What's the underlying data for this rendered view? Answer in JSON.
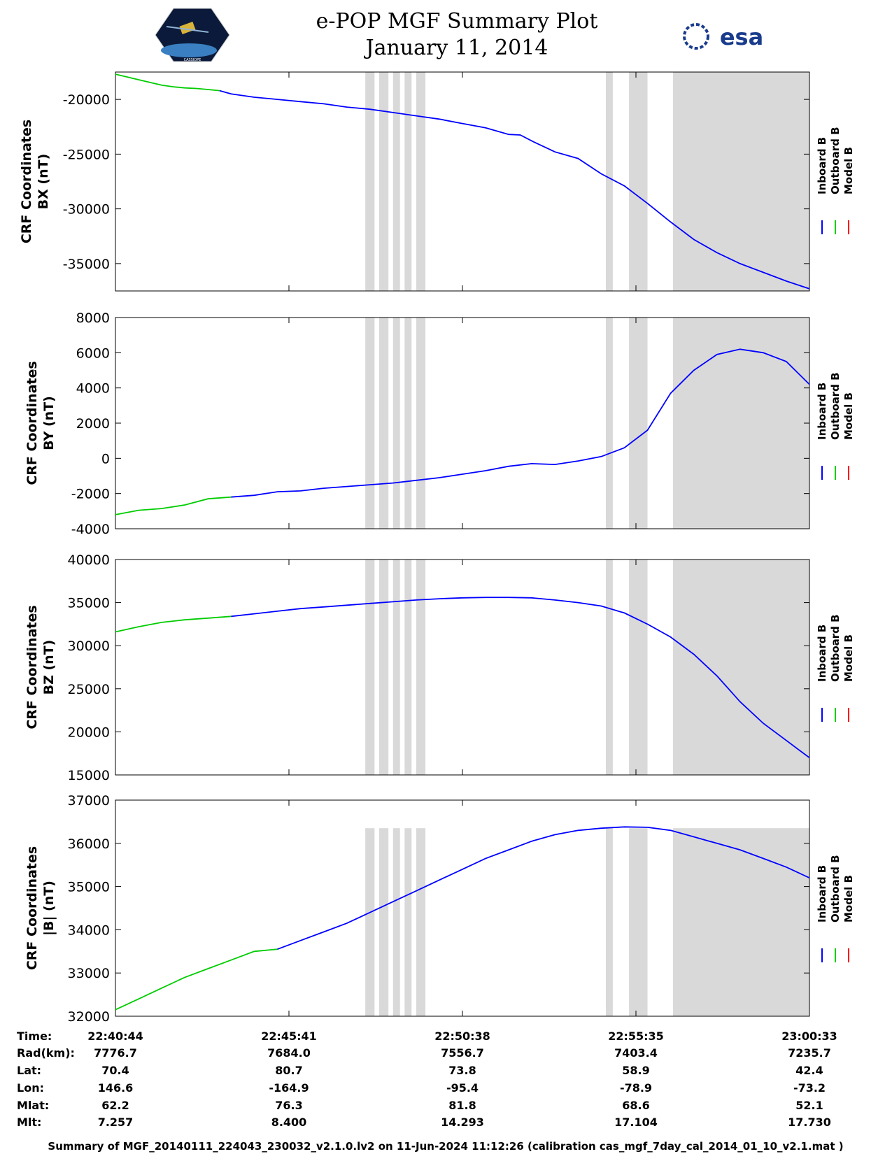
{
  "header": {
    "title": "e-POP MGF Summary Plot",
    "date": "January 11, 2014",
    "esa_logo": "esa",
    "mission_logo_text": "CASSIOPE"
  },
  "legend": {
    "labels": [
      "Inboard B",
      "Outboard B",
      "Model B"
    ],
    "colors": [
      "#0000ff",
      "#00cc00",
      "#ff0000"
    ]
  },
  "footer": "Summary of MGF_20140111_224043_230032_v2.1.0.lv2 on 11-Jun-2024 11:12:26 (calibration cas_mgf_7day_cal_2014_01_10_v2.1.mat )",
  "ephemeris": {
    "row_labels": [
      "Time:",
      "Rad(km):",
      "Lat:",
      "Lon:",
      "Mlat:",
      "Mlt:"
    ],
    "columns": [
      [
        "22:40:44",
        "7776.7",
        "70.4",
        "146.6",
        "62.2",
        "7.257"
      ],
      [
        "22:45:41",
        "7684.0",
        "80.7",
        "-164.9",
        "76.3",
        "8.400"
      ],
      [
        "22:50:38",
        "7556.7",
        "73.8",
        "-95.4",
        "81.8",
        "14.293"
      ],
      [
        "22:55:35",
        "7403.4",
        "58.9",
        "-78.9",
        "68.6",
        "17.104"
      ],
      [
        "23:00:33",
        "7235.7",
        "42.4",
        "-73.2",
        "52.1",
        "17.730"
      ]
    ]
  },
  "chart_data": [
    {
      "type": "line",
      "ylabel": [
        "CRF Coordinates",
        "BX (nT)"
      ],
      "ylim": [
        -37500,
        -17500
      ],
      "yticks": [
        -20000,
        -25000,
        -30000,
        -35000
      ],
      "series": [
        {
          "name": "Outboard B",
          "x": [
            0,
            0.5,
            1,
            1.5,
            2,
            2.5,
            3,
            3.5,
            4,
            4.5
          ],
          "y": [
            -17700,
            -17950,
            -18200,
            -18450,
            -18700,
            -18850,
            -18950,
            -19000,
            -19100,
            -19200
          ]
        },
        {
          "name": "Inboard B",
          "x": [
            4.5,
            5,
            6,
            7,
            8,
            9,
            10,
            11,
            12,
            13,
            14,
            15,
            16,
            17,
            17.5,
            18,
            19,
            20,
            21,
            22,
            23,
            24,
            25,
            26,
            27,
            28,
            29,
            30
          ],
          "y": [
            -19200,
            -19500,
            -19800,
            -20000,
            -20200,
            -20400,
            -20700,
            -20900,
            -21200,
            -21500,
            -21800,
            -22200,
            -22600,
            -23200,
            -23250,
            -23800,
            -24800,
            -25400,
            -26800,
            -27900,
            -29500,
            -31200,
            -32800,
            -34000,
            -35000,
            -35800,
            -36600,
            -37300
          ]
        }
      ],
      "gray_bands": [
        [
          10.8,
          11.2
        ],
        [
          11.4,
          11.8
        ],
        [
          12.0,
          12.3
        ],
        [
          12.5,
          12.8
        ],
        [
          13.0,
          13.4
        ],
        [
          21.2,
          21.5
        ],
        [
          22.2,
          23.0
        ],
        [
          24.1,
          30.0
        ]
      ]
    },
    {
      "type": "line",
      "ylabel": [
        "CRF Coordinates",
        "BY (nT)"
      ],
      "ylim": [
        -4000,
        8000
      ],
      "yticks": [
        8000,
        6000,
        4000,
        2000,
        0,
        -2000,
        -4000
      ],
      "series": [
        {
          "name": "Outboard B",
          "x": [
            0,
            1,
            2,
            3,
            4,
            5
          ],
          "y": [
            -3200,
            -2950,
            -2850,
            -2650,
            -2300,
            -2200
          ]
        },
        {
          "name": "Inboard B",
          "x": [
            5,
            6,
            7,
            8,
            9,
            10,
            11,
            12,
            13,
            14,
            15,
            16,
            17,
            18,
            19,
            20,
            21,
            22,
            23,
            24,
            25,
            26,
            27,
            28,
            29,
            30
          ],
          "y": [
            -2200,
            -2100,
            -1900,
            -1850,
            -1700,
            -1600,
            -1500,
            -1400,
            -1250,
            -1100,
            -900,
            -700,
            -450,
            -300,
            -350,
            -150,
            100,
            600,
            1600,
            3700,
            5000,
            5900,
            6200,
            6000,
            5500,
            4200
          ]
        }
      ],
      "gray_bands": [
        [
          10.8,
          11.2
        ],
        [
          11.4,
          11.8
        ],
        [
          12.0,
          12.3
        ],
        [
          12.5,
          12.8
        ],
        [
          13.0,
          13.4
        ],
        [
          21.2,
          21.5
        ],
        [
          22.2,
          23.0
        ],
        [
          24.1,
          30.0
        ]
      ]
    },
    {
      "type": "line",
      "ylabel": [
        "CRF Coordinates",
        "BZ (nT)"
      ],
      "ylim": [
        15000,
        40000
      ],
      "yticks": [
        40000,
        35000,
        30000,
        25000,
        20000,
        15000
      ],
      "series": [
        {
          "name": "Outboard B",
          "x": [
            0,
            1,
            2,
            3,
            4,
            5
          ],
          "y": [
            31600,
            32200,
            32700,
            33000,
            33200,
            33400
          ]
        },
        {
          "name": "Inboard B",
          "x": [
            5,
            6,
            7,
            8,
            9,
            10,
            11,
            12,
            13,
            14,
            15,
            16,
            17,
            18,
            19,
            20,
            21,
            22,
            23,
            24,
            25,
            26,
            27,
            28,
            29,
            30
          ],
          "y": [
            33400,
            33700,
            34000,
            34300,
            34500,
            34700,
            34900,
            35100,
            35300,
            35450,
            35550,
            35600,
            35600,
            35550,
            35300,
            35000,
            34600,
            33800,
            32500,
            31000,
            29000,
            26500,
            23500,
            21000,
            19000,
            17000
          ]
        }
      ],
      "gray_bands": [
        [
          10.8,
          11.2
        ],
        [
          11.4,
          11.8
        ],
        [
          12.0,
          12.3
        ],
        [
          12.5,
          12.8
        ],
        [
          13.0,
          13.4
        ],
        [
          21.2,
          21.5
        ],
        [
          22.2,
          23.0
        ],
        [
          24.1,
          30.0
        ]
      ]
    },
    {
      "type": "line",
      "ylabel": [
        "CRF Coordinates",
        "|B| (nT)"
      ],
      "ylim": [
        32000,
        37000
      ],
      "yticks": [
        37000,
        36000,
        35000,
        34000,
        33000,
        32000
      ],
      "series": [
        {
          "name": "Outboard B",
          "x": [
            0,
            1,
            2,
            3,
            4,
            5,
            6,
            7
          ],
          "y": [
            32150,
            32400,
            32650,
            32900,
            33100,
            33300,
            33500,
            33550
          ]
        },
        {
          "name": "Inboard B",
          "x": [
            7,
            8,
            9,
            10,
            11,
            12,
            13,
            14,
            15,
            16,
            17,
            18,
            19,
            20,
            21,
            22,
            23,
            24,
            25,
            26,
            27,
            28,
            29,
            30
          ],
          "y": [
            33550,
            33750,
            33950,
            34150,
            34400,
            34650,
            34900,
            35150,
            35400,
            35650,
            35850,
            36050,
            36200,
            36300,
            36350,
            36380,
            36370,
            36300,
            36150,
            36000,
            35850,
            35650,
            35450,
            35200
          ]
        }
      ],
      "gray_bands": [
        [
          10.8,
          11.2
        ],
        [
          11.4,
          11.8
        ],
        [
          12.0,
          12.3
        ],
        [
          12.5,
          12.8
        ],
        [
          13.0,
          13.4
        ],
        [
          21.2,
          21.5
        ],
        [
          22.2,
          23.0
        ],
        [
          24.1,
          30.0
        ]
      ],
      "band_top": 36350
    }
  ]
}
